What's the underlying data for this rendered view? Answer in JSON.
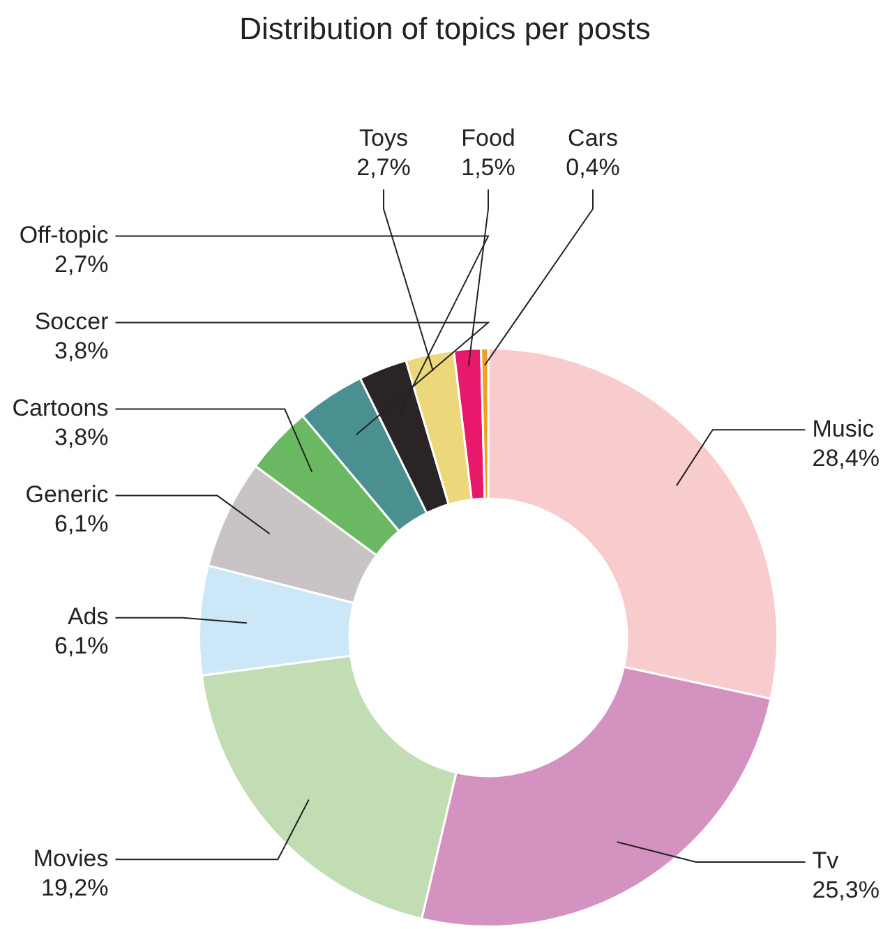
{
  "chart_data": {
    "type": "donut",
    "title": "Distribution of topics per posts",
    "categories": [
      "Music",
      "Tv",
      "Movies",
      "Ads",
      "Generic",
      "Cartoons",
      "Soccer",
      "Off-topic",
      "Toys",
      "Food",
      "Cars"
    ],
    "values": [
      28.4,
      25.3,
      19.2,
      6.1,
      6.1,
      3.8,
      3.8,
      2.7,
      2.7,
      1.5,
      0.4
    ],
    "value_labels": [
      "28,4%",
      "25,3%",
      "19,2%",
      "6,1%",
      "6,1%",
      "3,8%",
      "3,8%",
      "2,7%",
      "2,7%",
      "1,5%",
      "0,4%"
    ],
    "colors": [
      "#f8cbcc",
      "#d492c0",
      "#c2dcb4",
      "#cce8f8",
      "#c8c4c4",
      "#6ab862",
      "#4a9090",
      "#2b2424",
      "#ecd87a",
      "#e8186a",
      "#f0a020"
    ]
  }
}
